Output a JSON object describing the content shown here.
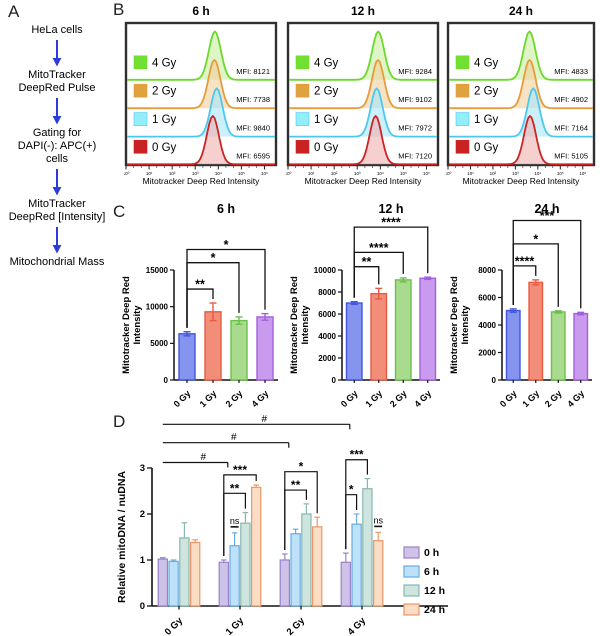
{
  "panel_labels": {
    "a": "A",
    "b": "B",
    "c": "C",
    "d": "D"
  },
  "panel_a": {
    "steps": [
      "HeLa cells",
      "MitoTracker\nDeepRed Pulse",
      "Gating for\nDAPI(-): APC(+)\ncells",
      "MitoTracker\nDeepRed [Intensity]",
      "Mitochondrial Mass"
    ],
    "arrow_color": "#2b3bdc"
  },
  "chart_data": [
    {
      "type": "ridgeline",
      "panel": "B",
      "title": "6 h",
      "xlabel": "Mitotracker Deep Red Intensity",
      "x_scale": "log",
      "x_ticks": [
        "10⁰",
        "10¹",
        "10²",
        "10³",
        "10⁴",
        "10⁵",
        "10⁶"
      ],
      "series": [
        {
          "name": "4 Gy",
          "mfi": 8121,
          "mfi_label": "MFI: 8121",
          "stroke": "#6cd92c",
          "fill": "#c9efa3",
          "swatch": "#72e032"
        },
        {
          "name": "2 Gy",
          "mfi": 7738,
          "mfi_label": "MFI: 7738",
          "stroke": "#e89b3a",
          "fill": "#f2d09e",
          "swatch": "#e0a23e"
        },
        {
          "name": "1 Gy",
          "mfi": 9840,
          "mfi_label": "MFI: 9840",
          "stroke": "#4ec7f0",
          "fill": "#aae6f8",
          "swatch": "#93eefc"
        },
        {
          "name": "0 Gy",
          "mfi": 6595,
          "mfi_label": "MFI: 6595",
          "stroke": "#cc2424",
          "fill": "#f1b1b1",
          "swatch": "#c82222"
        }
      ]
    },
    {
      "type": "ridgeline",
      "panel": "B",
      "title": "12 h",
      "xlabel": "Mitotracker Deep Red Intensity",
      "x_scale": "log",
      "x_ticks": [
        "10⁰",
        "10¹",
        "10²",
        "10³",
        "10⁴",
        "10⁵",
        "10⁶"
      ],
      "series": [
        {
          "name": "4 Gy",
          "mfi": 9284,
          "mfi_label": "MFI: 9284",
          "stroke": "#6cd92c",
          "fill": "#c9efa3",
          "swatch": "#72e032"
        },
        {
          "name": "2 Gy",
          "mfi": 9102,
          "mfi_label": "MFI: 9102",
          "stroke": "#e89b3a",
          "fill": "#f2d09e",
          "swatch": "#e0a23e"
        },
        {
          "name": "1 Gy",
          "mfi": 7972,
          "mfi_label": "MFI: 7972",
          "stroke": "#4ec7f0",
          "fill": "#aae6f8",
          "swatch": "#93eefc"
        },
        {
          "name": "0 Gy",
          "mfi": 7120,
          "mfi_label": "MFI: 7120",
          "stroke": "#cc2424",
          "fill": "#f1b1b1",
          "swatch": "#c82222"
        }
      ]
    },
    {
      "type": "ridgeline",
      "panel": "B",
      "title": "24 h",
      "xlabel": "Mitotracker Deep Red Intensity",
      "x_scale": "log",
      "x_ticks": [
        "10⁰",
        "10¹",
        "10²",
        "10³",
        "10⁴",
        "10⁵",
        "10⁶"
      ],
      "series": [
        {
          "name": "4 Gy",
          "mfi": 4833,
          "mfi_label": "MFI: 4833",
          "stroke": "#6cd92c",
          "fill": "#c9efa3",
          "swatch": "#72e032"
        },
        {
          "name": "2 Gy",
          "mfi": 4902,
          "mfi_label": "MFI: 4902",
          "stroke": "#e89b3a",
          "fill": "#f2d09e",
          "swatch": "#e0a23e"
        },
        {
          "name": "1 Gy",
          "mfi": 7164,
          "mfi_label": "MFI: 7164",
          "stroke": "#4ec7f0",
          "fill": "#aae6f8",
          "swatch": "#93eefc"
        },
        {
          "name": "0 Gy",
          "mfi": 5105,
          "mfi_label": "MFI: 5105",
          "stroke": "#cc2424",
          "fill": "#f1b1b1",
          "swatch": "#c82222"
        }
      ]
    },
    {
      "type": "bar",
      "panel": "C",
      "title": "6 h",
      "ylabel_lines": [
        "Mitotracker Deep Red",
        "Intensity"
      ],
      "categories": [
        "0 Gy",
        "1 Gy",
        "2 Gy",
        "4 Gy"
      ],
      "values": [
        6300,
        9300,
        8100,
        8600
      ],
      "errors": [
        280,
        1200,
        500,
        450
      ],
      "ylim": [
        0,
        15000
      ],
      "yticks": [
        0,
        5000,
        10000,
        15000
      ],
      "bar_fills": [
        "#8494ef",
        "#f28d79",
        "#a8db8d",
        "#c89bee"
      ],
      "bar_strokes": [
        "#4156dd",
        "#e85b43",
        "#6cc04b",
        "#a55fdd"
      ],
      "significance": [
        {
          "from": 0,
          "to": 1,
          "label": "**",
          "y": 12400
        },
        {
          "from": 0,
          "to": 2,
          "label": "*",
          "y": 16000
        },
        {
          "from": 0,
          "to": 3,
          "label": "*",
          "y": 17800
        }
      ]
    },
    {
      "type": "bar",
      "panel": "C",
      "title": "12 h",
      "ylabel_lines": [
        "Mitotracker Deep Red",
        "Intensity"
      ],
      "categories": [
        "0 Gy",
        "1 Gy",
        "2 Gy",
        "4 Gy"
      ],
      "values": [
        7000,
        7850,
        9100,
        9250
      ],
      "errors": [
        120,
        480,
        180,
        100
      ],
      "ylim": [
        0,
        10000
      ],
      "yticks": [
        0,
        2000,
        4000,
        6000,
        8000,
        10000
      ],
      "bar_fills": [
        "#8494ef",
        "#f28d79",
        "#a8db8d",
        "#c89bee"
      ],
      "bar_strokes": [
        "#4156dd",
        "#e85b43",
        "#6cc04b",
        "#a55fdd"
      ],
      "significance": [
        {
          "from": 0,
          "to": 1,
          "label": "**",
          "y": 10300
        },
        {
          "from": 0,
          "to": 2,
          "label": "****",
          "y": 11600
        },
        {
          "from": 0,
          "to": 3,
          "label": "****",
          "y": 13900
        }
      ]
    },
    {
      "type": "bar",
      "panel": "C",
      "title": "24 h",
      "ylabel_lines": [
        "Mitotracker Deep Red",
        "Intensity"
      ],
      "categories": [
        "0 Gy",
        "1 Gy",
        "2 Gy",
        "4 Gy"
      ],
      "values": [
        5050,
        7100,
        4950,
        4830
      ],
      "errors": [
        120,
        180,
        80,
        90
      ],
      "ylim": [
        0,
        8000
      ],
      "yticks": [
        0,
        2000,
        4000,
        6000,
        8000
      ],
      "bar_fills": [
        "#8494ef",
        "#f28d79",
        "#a8db8d",
        "#c89bee"
      ],
      "bar_strokes": [
        "#4156dd",
        "#e85b43",
        "#6cc04b",
        "#a55fdd"
      ],
      "significance": [
        {
          "from": 0,
          "to": 1,
          "label": "****",
          "y": 8300
        },
        {
          "from": 0,
          "to": 2,
          "label": "*",
          "y": 9900
        },
        {
          "from": 0,
          "to": 3,
          "label": "***",
          "y": 11600
        }
      ]
    },
    {
      "type": "grouped_bar",
      "panel": "D",
      "ylabel": "Relative mitoDNA / nuDNA",
      "categories": [
        "0 Gy",
        "1 Gy",
        "2 Gy",
        "4 Gy"
      ],
      "ylim": [
        0,
        3
      ],
      "yticks": [
        0,
        1,
        2,
        3
      ],
      "legend_position": "right",
      "series": [
        {
          "name": "0 h",
          "fill": "#cfc2e9",
          "stroke": "#9a82c8",
          "values": [
            1.02,
            0.95,
            1.0,
            0.95
          ],
          "errors": [
            0.03,
            0.05,
            0.13,
            0.2
          ]
        },
        {
          "name": "6 h",
          "fill": "#bce1f9",
          "stroke": "#69abdf",
          "values": [
            0.97,
            1.31,
            1.57,
            1.78
          ],
          "errors": [
            0.03,
            0.28,
            0.1,
            0.22
          ]
        },
        {
          "name": "12 h",
          "fill": "#cee4de",
          "stroke": "#87b8af",
          "values": [
            1.48,
            1.8,
            2.0,
            2.55
          ],
          "errors": [
            0.33,
            0.23,
            0.22,
            0.22
          ]
        },
        {
          "name": "24 h",
          "fill": "#fbdcc5",
          "stroke": "#eb9768",
          "values": [
            1.38,
            2.58,
            1.72,
            1.42
          ],
          "errors": [
            0.06,
            0.05,
            0.21,
            0.18
          ]
        }
      ],
      "significance": {
        "hash": [
          {
            "label": "#",
            "from_group": 0,
            "to_group": 3,
            "y": 3.95
          },
          {
            "label": "#",
            "from_group": 0,
            "to_group": 2,
            "y": 3.55
          },
          {
            "label": "#",
            "from_group": 0,
            "to_group": 1,
            "y": 3.12
          }
        ],
        "brackets": [
          {
            "group": 1,
            "from": 0,
            "to": 2,
            "label": "**",
            "y": 2.45
          },
          {
            "group": 1,
            "from": 0,
            "to": 3,
            "label": "***",
            "y": 2.85
          },
          {
            "group": 2,
            "from": 0,
            "to": 2,
            "label": "**",
            "y": 2.52
          },
          {
            "group": 2,
            "from": 0,
            "to": 3,
            "label": "*",
            "y": 2.92
          },
          {
            "group": 3,
            "from": 0,
            "to": 1,
            "label": "*",
            "y": 2.42
          },
          {
            "group": 3,
            "from": 0,
            "to": 2,
            "label": "***",
            "y": 3.18
          }
        ],
        "ns": [
          {
            "group": 1,
            "series": 1,
            "label": "ns"
          },
          {
            "group": 3,
            "series": 3,
            "label": "ns"
          }
        ]
      }
    }
  ]
}
